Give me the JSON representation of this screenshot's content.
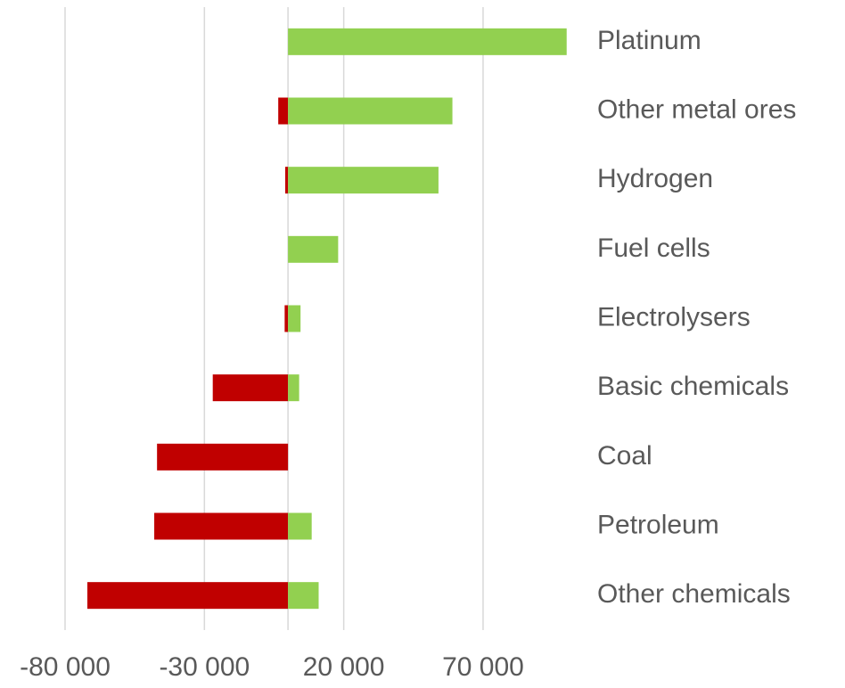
{
  "chart_data": {
    "type": "bar",
    "orientation": "horizontal",
    "categories": [
      "Platinum",
      "Other metal ores",
      "Hydrogen",
      "Fuel cells",
      "Electrolysers",
      "Basic chemicals",
      "Coal",
      "Petroleum",
      "Other chemicals"
    ],
    "series": [
      {
        "color": "#c00000",
        "values": [
          0,
          -3500,
          -1000,
          0,
          -1200,
          -27000,
          -47000,
          -48000,
          -72000
        ]
      },
      {
        "color": "#92d050",
        "values": [
          100000,
          59000,
          54000,
          18000,
          4500,
          4000,
          0,
          8500,
          11000
        ]
      }
    ],
    "xlim": [
      -80000,
      110000
    ],
    "xticks": [
      {
        "value": -80000,
        "label": "-80 000"
      },
      {
        "value": -30000,
        "label": "-30 000"
      },
      {
        "value": 20000,
        "label": "20 000"
      },
      {
        "value": 70000,
        "label": "70 000"
      }
    ],
    "grid": true
  }
}
